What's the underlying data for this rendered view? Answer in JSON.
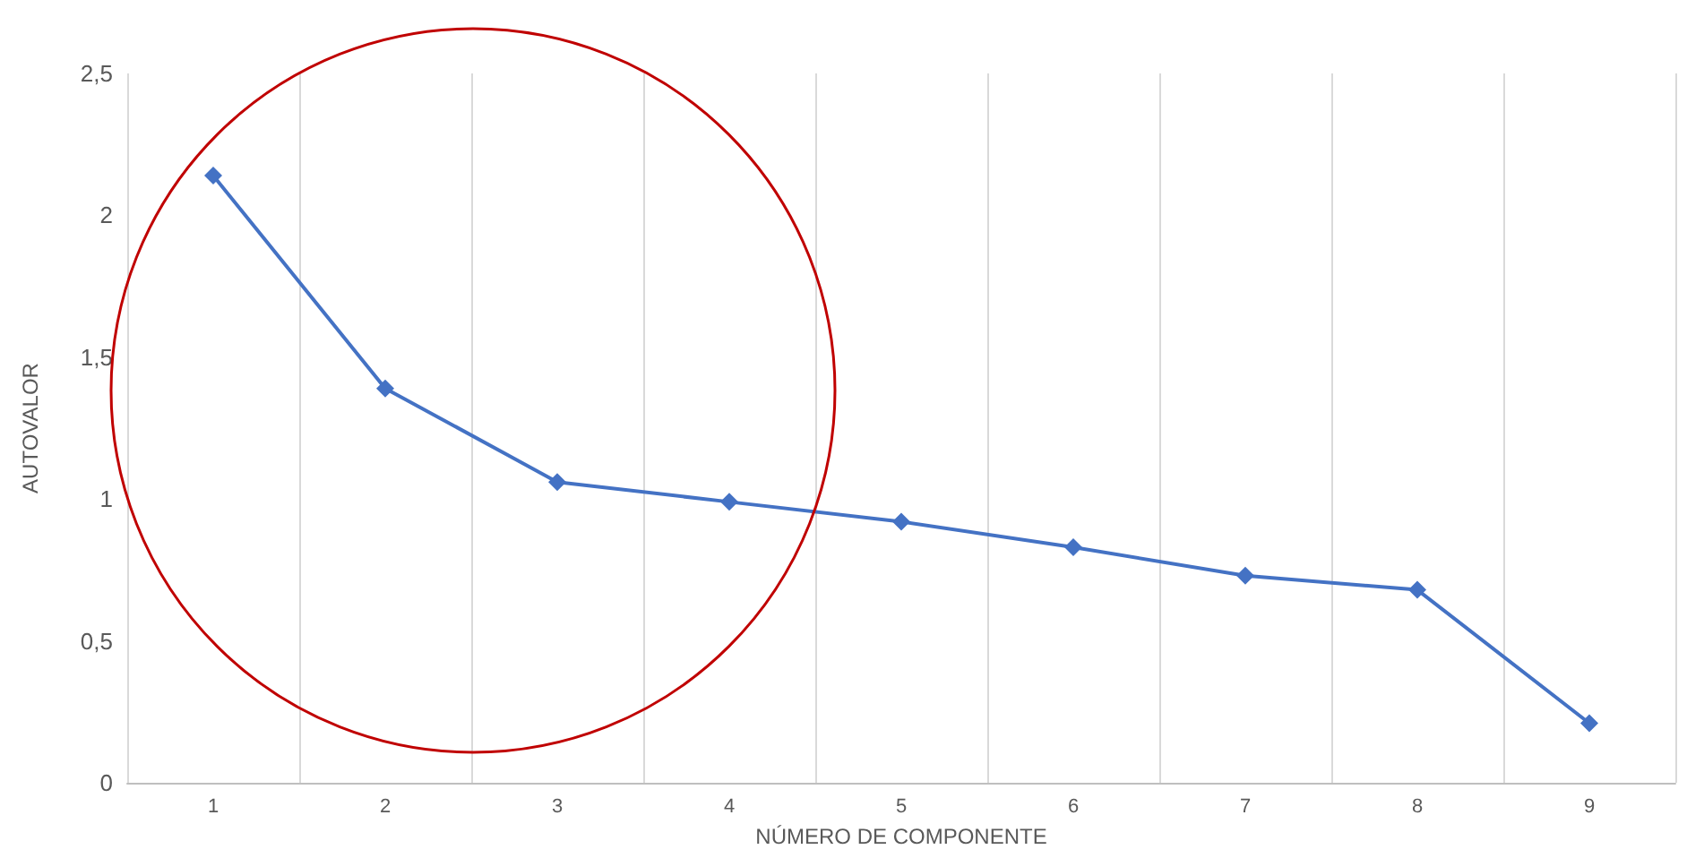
{
  "chart_data": {
    "type": "line",
    "xlabel": "NÚMERO DE COMPONENTE",
    "ylabel": "AUTOVALOR",
    "categories": [
      "1",
      "2",
      "3",
      "4",
      "5",
      "6",
      "7",
      "8",
      "9"
    ],
    "series": [
      {
        "color": "#4472c4",
        "values": [
          2.14,
          1.39,
          1.06,
          0.99,
          0.92,
          0.83,
          0.73,
          0.68,
          0.21
        ]
      }
    ],
    "ylim": [
      0,
      2.5
    ],
    "yticks": [
      {
        "value": 0,
        "label": "0"
      },
      {
        "value": 0.5,
        "label": "0,5"
      },
      {
        "value": 1,
        "label": "1"
      },
      {
        "value": 1.5,
        "label": "1,5"
      },
      {
        "value": 2,
        "label": "2"
      },
      {
        "value": 2.5,
        "label": "2,5"
      }
    ],
    "grid": "x",
    "marker": "diamond",
    "line_style": "solid"
  }
}
